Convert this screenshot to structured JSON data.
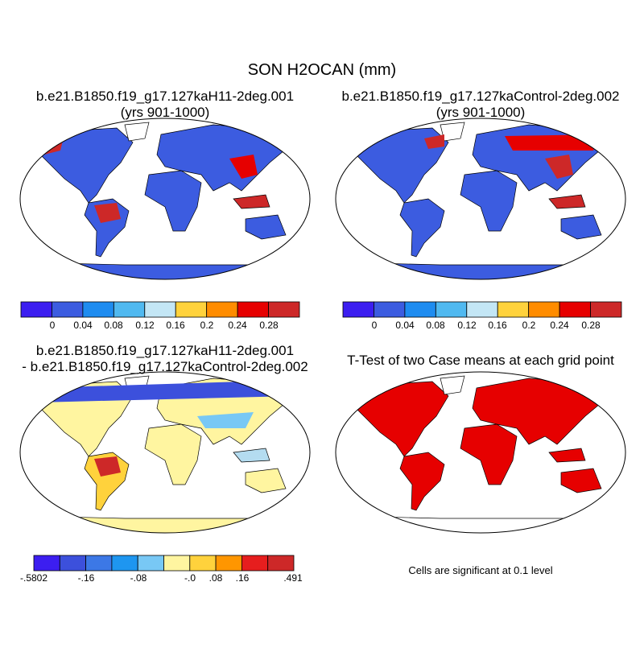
{
  "title": "SON H2OCAN (mm)",
  "panels": [
    {
      "title": "b.e21.B1850.f19_g17.127kaH11-2deg.001",
      "subtitle": "(yrs 901-1000)",
      "colorbar": {
        "colors": [
          "#3c1ef0",
          "#3c5ce0",
          "#1e8cf0",
          "#50b9f0",
          "#c3e6f5",
          "#ffd23c",
          "#ff8c00",
          "#e60000",
          "#cd2828"
        ],
        "labels": [
          "0",
          "0.04",
          "0.08",
          "0.12",
          "0.16",
          "0.2",
          "0.24",
          "0.28"
        ]
      }
    },
    {
      "title": "b.e21.B1850.f19_g17.127kaControl-2deg.002",
      "subtitle": "(yrs 901-1000)",
      "colorbar": {
        "colors": [
          "#3c1ef0",
          "#3c5ce0",
          "#1e8cf0",
          "#50b9f0",
          "#c3e6f5",
          "#ffd23c",
          "#ff8c00",
          "#e60000",
          "#cd2828"
        ],
        "labels": [
          "0",
          "0.04",
          "0.08",
          "0.12",
          "0.16",
          "0.2",
          "0.24",
          "0.28"
        ]
      }
    },
    {
      "title": "b.e21.B1850.f19_g17.127kaH11-2deg.001",
      "subtitle": "- b.e21.B1850.f19_g17.127kaControl-2deg.002",
      "colorbar": {
        "colors": [
          "#3c1ef0",
          "#3c50dc",
          "#3c78e6",
          "#1e96f0",
          "#78c8f5",
          "#fff5a0",
          "#ffd23c",
          "#ff9600",
          "#e61e1e",
          "#cd2828"
        ],
        "labels": [
          "-.5802",
          "-.16",
          "-.08",
          "-.0",
          ".08",
          ".16",
          ".491"
        ]
      }
    },
    {
      "title": "T-Test of two Case means at each grid point",
      "note": "Cells are significant at 0.1 level"
    }
  ]
}
